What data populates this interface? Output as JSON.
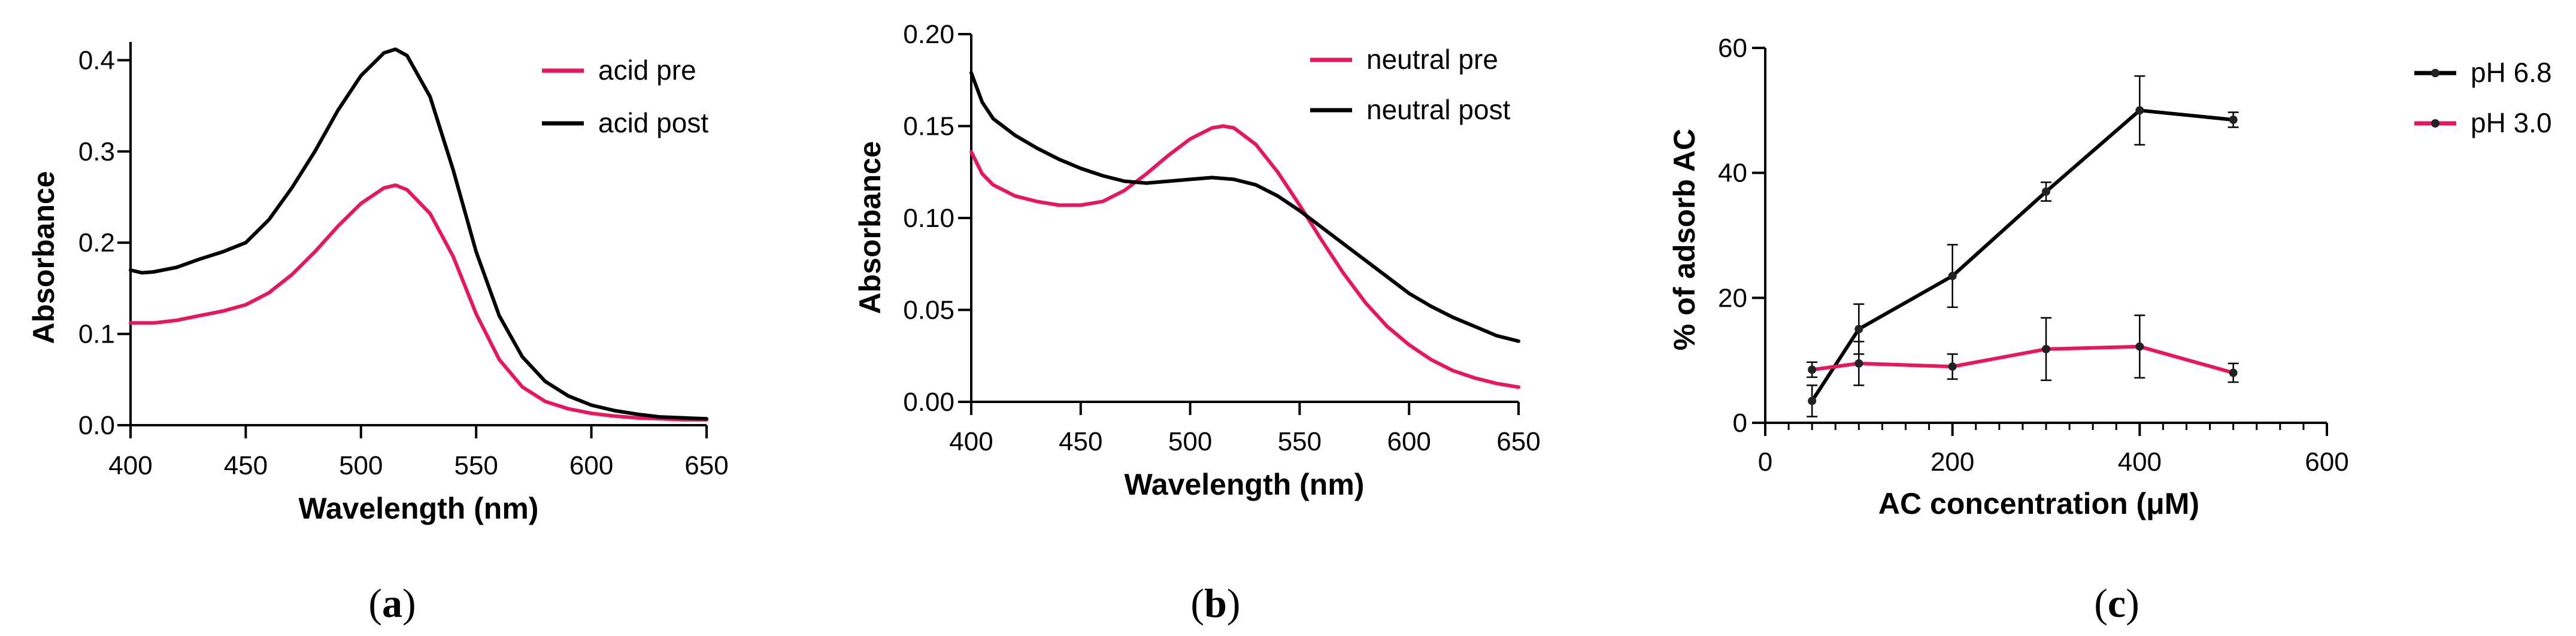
{
  "chart_data": [
    {
      "type": "line",
      "panel_label": {
        "open": "(",
        "letter": "a",
        "close": ")"
      },
      "xlabel": "Wavelength (nm)",
      "ylabel": "Absorbance",
      "xlim": [
        400,
        650
      ],
      "ylim": [
        0,
        0.42
      ],
      "xticks": [
        400,
        450,
        500,
        550,
        600,
        650
      ],
      "yticks": [
        0.0,
        0.1,
        0.2,
        0.3,
        0.4
      ],
      "ytick_labels": [
        "0.0",
        "0.1",
        "0.2",
        "0.3",
        "0.4"
      ],
      "legend_position": "top-right",
      "series": [
        {
          "name": "acid pre",
          "color": "#e8175d",
          "x": [
            400,
            410,
            420,
            430,
            440,
            450,
            460,
            470,
            480,
            490,
            500,
            510,
            515,
            520,
            530,
            540,
            550,
            560,
            570,
            580,
            590,
            600,
            610,
            620,
            630,
            640,
            650
          ],
          "y": [
            0.112,
            0.112,
            0.115,
            0.12,
            0.125,
            0.132,
            0.145,
            0.165,
            0.19,
            0.218,
            0.243,
            0.26,
            0.263,
            0.258,
            0.232,
            0.185,
            0.122,
            0.072,
            0.042,
            0.026,
            0.018,
            0.013,
            0.01,
            0.008,
            0.007,
            0.006,
            0.006
          ]
        },
        {
          "name": "acid post",
          "color": "#000000",
          "x": [
            400,
            405,
            410,
            420,
            430,
            440,
            450,
            460,
            470,
            480,
            490,
            500,
            510,
            515,
            520,
            530,
            540,
            550,
            560,
            570,
            580,
            590,
            600,
            610,
            620,
            630,
            640,
            650
          ],
          "y": [
            0.17,
            0.167,
            0.168,
            0.173,
            0.182,
            0.19,
            0.2,
            0.225,
            0.26,
            0.3,
            0.345,
            0.383,
            0.408,
            0.412,
            0.405,
            0.36,
            0.28,
            0.19,
            0.12,
            0.075,
            0.048,
            0.032,
            0.022,
            0.016,
            0.012,
            0.009,
            0.008,
            0.007
          ]
        }
      ]
    },
    {
      "type": "line",
      "panel_label": {
        "open": "(",
        "letter": "b",
        "close": ")"
      },
      "xlabel": "Wavelength (nm)",
      "ylabel": "Absorbance",
      "xlim": [
        400,
        650
      ],
      "ylim": [
        0,
        0.2
      ],
      "xticks": [
        400,
        450,
        500,
        550,
        600,
        650
      ],
      "yticks": [
        0.0,
        0.05,
        0.1,
        0.15,
        0.2
      ],
      "ytick_labels": [
        "0.00",
        "0.05",
        "0.10",
        "0.15",
        "0.20"
      ],
      "legend_position": "top-right",
      "series": [
        {
          "name": "neutral pre",
          "color": "#e8175d",
          "x": [
            400,
            405,
            410,
            420,
            430,
            440,
            450,
            460,
            470,
            480,
            490,
            500,
            510,
            515,
            520,
            530,
            540,
            550,
            560,
            570,
            580,
            590,
            600,
            610,
            620,
            630,
            640,
            650
          ],
          "y": [
            0.136,
            0.124,
            0.118,
            0.112,
            0.109,
            0.107,
            0.107,
            0.109,
            0.115,
            0.124,
            0.134,
            0.143,
            0.149,
            0.15,
            0.149,
            0.14,
            0.125,
            0.107,
            0.088,
            0.07,
            0.054,
            0.041,
            0.031,
            0.023,
            0.017,
            0.013,
            0.01,
            0.008
          ]
        },
        {
          "name": "neutral post",
          "color": "#000000",
          "x": [
            400,
            405,
            410,
            420,
            430,
            440,
            450,
            460,
            470,
            480,
            490,
            500,
            510,
            520,
            530,
            540,
            550,
            560,
            570,
            580,
            590,
            600,
            610,
            620,
            630,
            640,
            650
          ],
          "y": [
            0.179,
            0.163,
            0.154,
            0.145,
            0.138,
            0.132,
            0.127,
            0.123,
            0.12,
            0.119,
            0.12,
            0.121,
            0.122,
            0.121,
            0.118,
            0.112,
            0.104,
            0.095,
            0.086,
            0.077,
            0.068,
            0.059,
            0.052,
            0.046,
            0.041,
            0.036,
            0.033
          ]
        }
      ]
    },
    {
      "type": "line",
      "panel_label": {
        "open": "(",
        "letter": "c",
        "close": ")"
      },
      "xlabel": "AC concentration (μM)",
      "ylabel": "% of adsorb AC",
      "xlim": [
        0,
        600
      ],
      "ylim": [
        0,
        60
      ],
      "xticks": [
        0,
        200,
        400,
        600
      ],
      "yticks": [
        0,
        20,
        40,
        60
      ],
      "ytick_labels": [
        "0",
        "20",
        "40",
        "60"
      ],
      "legend_position": "top-right (outside)",
      "series": [
        {
          "name": "pH 6.8",
          "color": "#000000",
          "x": [
            50,
            100,
            200,
            300,
            400,
            500
          ],
          "y": [
            3.5,
            15,
            23.5,
            37,
            50,
            48.5
          ],
          "err": [
            2.5,
            4,
            5,
            1.5,
            5.5,
            1.2
          ]
        },
        {
          "name": "pH 3.0",
          "color": "#e8175d",
          "x": [
            50,
            100,
            200,
            300,
            400,
            500
          ],
          "y": [
            8.5,
            9.5,
            9,
            11.8,
            12.2,
            8
          ],
          "err": [
            1.2,
            3.5,
            2,
            5,
            5,
            1.5
          ]
        }
      ]
    }
  ]
}
